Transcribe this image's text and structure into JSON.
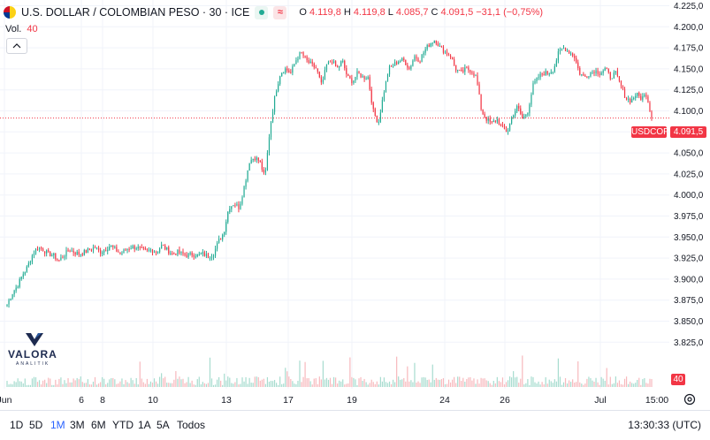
{
  "header": {
    "symbol_title": "U.S. DOLLAR / COLOMBIAN PESO · 30 · ICE",
    "ohlc": {
      "open_label": "O",
      "open": "4.119,8",
      "high_label": "H",
      "high": "4.119,8",
      "low_label": "L",
      "low": "4.085,7",
      "close_label": "C",
      "close": "4.091,5",
      "change": "−31,1 (−0,75%)"
    },
    "volume_label": "Vol.",
    "volume_value": "40",
    "status_colors": {
      "down": "#f23645",
      "up": "#22ab94"
    }
  },
  "price_axis": {
    "ticks": [
      "4.225,0",
      "4.200,0",
      "4.175,0",
      "4.150,0",
      "4.125,0",
      "4.100,0",
      "4.075,0",
      "4.050,0",
      "4.025,0",
      "4.000,0",
      "3.975,0",
      "3.950,0",
      "3.925,0",
      "3.900,0",
      "3.875,0",
      "3.850,0",
      "3.825,0"
    ],
    "last_price_symbol": "USDCOP",
    "last_price": "4.091,5",
    "volume_tag": "40"
  },
  "time_axis": {
    "labels": [
      "Jun",
      "6",
      "8",
      "10",
      "13",
      "17",
      "19",
      "24",
      "26",
      "Jul",
      "15:00"
    ]
  },
  "watermark": {
    "brand": "VALORA",
    "subtext": "ANALITIK"
  },
  "bottom_bar": {
    "timeframes": [
      "1D",
      "5D",
      "1M",
      "3M",
      "6M",
      "YTD",
      "1A",
      "5A",
      "Todos"
    ],
    "active_timeframe": "1M",
    "clock": "13:30:33 (UTC)",
    "settings_icon": "gear-icon"
  },
  "chart_data": {
    "type": "candlestick",
    "title": "U.S. DOLLAR / COLOMBIAN PESO · 30 · ICE",
    "ylim": [
      3815,
      4230
    ],
    "grid": true,
    "last_price": 4091.5,
    "anchor_path_x_labels": [
      "Jun",
      "6",
      "8",
      "10",
      "13",
      "17",
      "19",
      "24",
      "26",
      "Jul"
    ],
    "price_path_anchors": [
      [
        3870,
        3883,
        3892,
        3905,
        3915,
        3930,
        3938,
        3935,
        3930,
        3928,
        3922
      ],
      [
        3922,
        3928,
        3935,
        3932,
        3930,
        3932,
        3935,
        3938,
        3932,
        3935,
        3940
      ],
      [
        3940,
        3935,
        3930,
        3935,
        3938,
        3938,
        3935,
        3933,
        3935,
        3932,
        3940
      ],
      [
        3940,
        3935,
        3930,
        3932,
        3930,
        3928,
        3930,
        3928,
        3930,
        3927,
        3930
      ],
      [
        3930,
        3945,
        3955,
        3985,
        3990,
        3985,
        4010,
        4040,
        4045,
        4040,
        4020
      ],
      [
        4020,
        4080,
        4120,
        4145,
        4150,
        4145,
        4160,
        4170,
        4160,
        4155,
        4150
      ],
      [
        4150,
        4130,
        4155,
        4160,
        4150,
        4160,
        4140,
        4135,
        4145,
        4140,
        4140
      ],
      [
        4140,
        4100,
        4085,
        4120,
        4150,
        4155,
        4160,
        4160,
        4150,
        4165,
        4160
      ],
      [
        4160,
        4172,
        4180,
        4185,
        4175,
        4170,
        4165,
        4150,
        4145,
        4150,
        4148
      ],
      [
        4148,
        4140,
        4100,
        4090,
        4085,
        4090,
        4080,
        4075,
        4095,
        4105,
        4090
      ],
      [
        4090,
        4100,
        4130,
        4140,
        4145,
        4145,
        4150,
        4170,
        4175,
        4170,
        4165
      ],
      [
        4165,
        4145,
        4140,
        4145,
        4148,
        4145,
        4150,
        4140,
        4145,
        4130,
        4115
      ],
      [
        4115,
        4112,
        4120,
        4115,
        4119.8,
        4091.5
      ]
    ]
  }
}
